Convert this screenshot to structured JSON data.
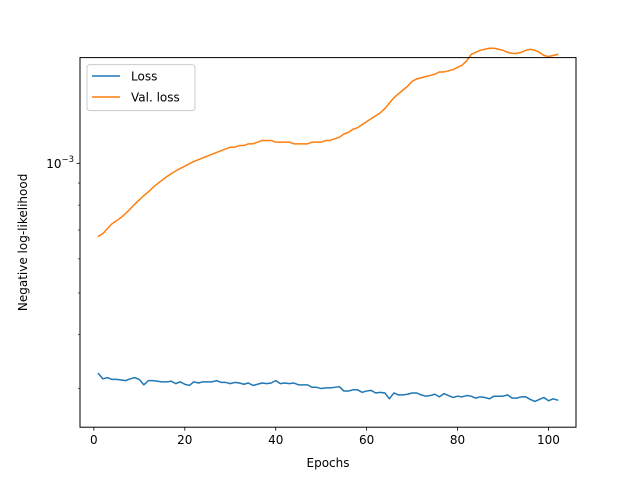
{
  "chart_data": {
    "type": "line",
    "xlabel": "Epochs",
    "ylabel": "Negative log-likelihood",
    "xlim": [
      -3.05,
      106.05
    ],
    "ylim": [
      0.000244,
      0.00176
    ],
    "y_scale": "log",
    "x_ticks": [
      0,
      20,
      40,
      60,
      80,
      100
    ],
    "x_tick_labels": [
      "0",
      "20",
      "40",
      "60",
      "80",
      "100"
    ],
    "y_major_ticks": [
      0.001
    ],
    "y_major_tick_labels": [
      {
        "base": "10",
        "exp": "−3"
      }
    ],
    "grid": false,
    "legend_position": "upper left",
    "colors": {
      "loss": "#1f77b4",
      "val_loss": "#ff7f0e"
    },
    "series": [
      {
        "name": "Loss",
        "color": "#1f77b4",
        "x": [
          1,
          2,
          3,
          4,
          5,
          6,
          7,
          8,
          9,
          10,
          11,
          12,
          13,
          14,
          15,
          16,
          17,
          18,
          19,
          20,
          21,
          22,
          23,
          24,
          25,
          26,
          27,
          28,
          29,
          30,
          31,
          32,
          33,
          34,
          35,
          36,
          37,
          38,
          39,
          40,
          41,
          42,
          43,
          44,
          45,
          46,
          47,
          48,
          49,
          50,
          51,
          52,
          53,
          54,
          55,
          56,
          57,
          58,
          59,
          60,
          61,
          62,
          63,
          64,
          65,
          66,
          67,
          68,
          69,
          70,
          71,
          72,
          73,
          74,
          75,
          76,
          77,
          78,
          79,
          80,
          81,
          82,
          83,
          84,
          85,
          86,
          87,
          88,
          89,
          90,
          91,
          92,
          93,
          94,
          95,
          96,
          97,
          98,
          99,
          100,
          101,
          102
        ],
        "y": [
          0.000325,
          0.000316,
          0.000318,
          0.000315,
          0.000315,
          0.000314,
          0.000313,
          0.000316,
          0.000318,
          0.000315,
          0.000306,
          0.000313,
          0.000313,
          0.000312,
          0.000311,
          0.000311,
          0.000312,
          0.000308,
          0.000311,
          0.000307,
          0.000305,
          0.000311,
          0.000309,
          0.000311,
          0.000311,
          0.000311,
          0.000313,
          0.00031,
          0.00031,
          0.000308,
          0.00031,
          0.000309,
          0.000307,
          0.000309,
          0.000305,
          0.000307,
          0.000309,
          0.000308,
          0.000309,
          0.000313,
          0.000308,
          0.000309,
          0.000308,
          0.000309,
          0.000306,
          0.000306,
          0.000306,
          0.000302,
          0.000302,
          0.0003,
          0.000301,
          0.000301,
          0.000302,
          0.000303,
          0.000296,
          0.000296,
          0.000298,
          0.000298,
          0.000294,
          0.000296,
          0.000297,
          0.000293,
          0.000294,
          0.000293,
          0.000284,
          0.000293,
          0.00029,
          0.00029,
          0.000291,
          0.000293,
          0.000293,
          0.00029,
          0.000288,
          0.000289,
          0.000291,
          0.000287,
          0.000292,
          0.000289,
          0.000286,
          0.000288,
          0.000287,
          0.000289,
          0.000288,
          0.000285,
          0.000287,
          0.000286,
          0.000284,
          0.000288,
          0.000288,
          0.000288,
          0.00029,
          0.000285,
          0.000285,
          0.000287,
          0.000287,
          0.000283,
          0.00028,
          0.000283,
          0.000286,
          0.000281,
          0.000284,
          0.000282
        ]
      },
      {
        "name": "Val. loss",
        "color": "#ff7f0e",
        "x": [
          1,
          2,
          3,
          4,
          5,
          6,
          7,
          8,
          9,
          10,
          11,
          12,
          13,
          14,
          15,
          16,
          17,
          18,
          19,
          20,
          21,
          22,
          23,
          24,
          25,
          26,
          27,
          28,
          29,
          30,
          31,
          32,
          33,
          34,
          35,
          36,
          37,
          38,
          39,
          40,
          41,
          42,
          43,
          44,
          45,
          46,
          47,
          48,
          49,
          50,
          51,
          52,
          53,
          54,
          55,
          56,
          57,
          58,
          59,
          60,
          61,
          62,
          63,
          64,
          65,
          66,
          67,
          68,
          69,
          70,
          71,
          72,
          73,
          74,
          75,
          76,
          77,
          78,
          79,
          80,
          81,
          82,
          83,
          84,
          85,
          86,
          87,
          88,
          89,
          90,
          91,
          92,
          93,
          94,
          95,
          96,
          97,
          98,
          99,
          100,
          101,
          102
        ],
        "y": [
          0.000677,
          0.000687,
          0.000706,
          0.000724,
          0.000736,
          0.000749,
          0.000765,
          0.000784,
          0.000804,
          0.000823,
          0.000842,
          0.000859,
          0.000879,
          0.000897,
          0.000914,
          0.000931,
          0.000946,
          0.00096,
          0.000973,
          0.000985,
          0.000998,
          0.00101,
          0.00102,
          0.00103,
          0.00104,
          0.00105,
          0.00106,
          0.00107,
          0.00108,
          0.00109,
          0.00109,
          0.0011,
          0.0011,
          0.00111,
          0.00111,
          0.00112,
          0.00113,
          0.00113,
          0.00113,
          0.00112,
          0.00112,
          0.00112,
          0.00112,
          0.00111,
          0.00111,
          0.00111,
          0.00111,
          0.00112,
          0.00112,
          0.00112,
          0.00113,
          0.00113,
          0.00114,
          0.00115,
          0.00117,
          0.00118,
          0.0012,
          0.00121,
          0.00123,
          0.00125,
          0.00127,
          0.00129,
          0.00131,
          0.00134,
          0.00138,
          0.00142,
          0.00145,
          0.00148,
          0.00151,
          0.00155,
          0.00157,
          0.00158,
          0.00159,
          0.0016,
          0.00161,
          0.00163,
          0.00163,
          0.00164,
          0.00165,
          0.00167,
          0.00169,
          0.00173,
          0.00179,
          0.00181,
          0.00183,
          0.00184,
          0.00185,
          0.00185,
          0.00184,
          0.00183,
          0.00181,
          0.0018,
          0.0018,
          0.00181,
          0.00183,
          0.00184,
          0.00183,
          0.00181,
          0.00178,
          0.00177,
          0.00178,
          0.00179
        ]
      }
    ]
  }
}
